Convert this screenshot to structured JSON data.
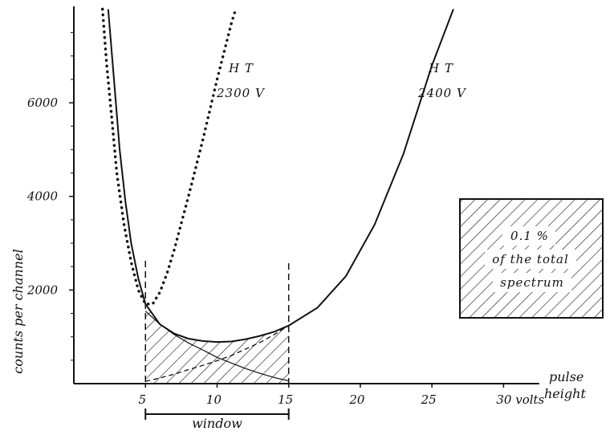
{
  "chart_data": {
    "type": "line",
    "title": "",
    "xlabel": "pulse height",
    "ylabel": "counts per channel",
    "x_unit": "volts",
    "xlim": [
      0,
      32.5
    ],
    "ylim": [
      0,
      8000
    ],
    "x_ticks": [
      5,
      10,
      15,
      20,
      25,
      30
    ],
    "x_tick_labels": [
      "5",
      "10",
      "15",
      "20",
      "25",
      "30 volts"
    ],
    "y_ticks": [
      2000,
      4000,
      6000
    ],
    "y_tick_labels": [
      "2000",
      "4000",
      "6000"
    ],
    "grid": false,
    "series": [
      {
        "name": "HT 2300 V",
        "style": "dotted",
        "x": [
          2.0,
          2.3,
          2.7,
          3.0,
          3.5,
          4.0,
          4.5,
          5.0,
          5.5,
          6.0,
          6.5,
          7.0,
          8.0,
          9.0,
          10.0,
          10.5,
          11.0,
          11.3
        ],
        "y": [
          8000,
          6800,
          5500,
          4500,
          3400,
          2600,
          2000,
          1700,
          1700,
          1950,
          2350,
          2850,
          4000,
          5200,
          6500,
          7100,
          7700,
          8000
        ]
      },
      {
        "name": "HT 2400 V",
        "style": "solid",
        "x": [
          2.4,
          2.8,
          3.2,
          3.6,
          4.0,
          4.5,
          5.0,
          6.0,
          7.0,
          8.0,
          9.0,
          10.0,
          11.0,
          12.0,
          13.0,
          14.0,
          15.0,
          17.0,
          19.0,
          21.0,
          23.0,
          25.0,
          26.5
        ],
        "y": [
          8000,
          6500,
          5000,
          3900,
          3000,
          2250,
          1700,
          1270,
          1070,
          960,
          910,
          890,
          900,
          950,
          1020,
          1110,
          1240,
          1620,
          2300,
          3400,
          4900,
          6800,
          8000
        ]
      },
      {
        "name": "",
        "style": "thin",
        "x": [
          5.0,
          6.0,
          7.0,
          8.0,
          9.0,
          10.0,
          11.0,
          12.0,
          13.0,
          14.0,
          15.0
        ],
        "y": [
          1550,
          1270,
          1050,
          870,
          720,
          560,
          440,
          320,
          220,
          130,
          60
        ]
      },
      {
        "name": "",
        "style": "dashed",
        "x": [
          5.0,
          6.0,
          7.0,
          8.0,
          9.0,
          10.0,
          11.0,
          12.0,
          13.0,
          14.0,
          15.0
        ],
        "y": [
          50,
          120,
          200,
          300,
          390,
          490,
          600,
          740,
          880,
          1050,
          1240
        ]
      }
    ],
    "window": {
      "x_range": [
        5,
        15
      ],
      "label": "window"
    },
    "series_labels": [
      {
        "line1": "H T",
        "line2": "2300 V"
      },
      {
        "line1": "H T",
        "line2": "2400 V"
      }
    ],
    "legend_box": {
      "line1": "0.1 %",
      "line2": "of the total",
      "line3": "spectrum"
    },
    "colors": {
      "ink": "#111111",
      "background": "#ffffff"
    }
  }
}
